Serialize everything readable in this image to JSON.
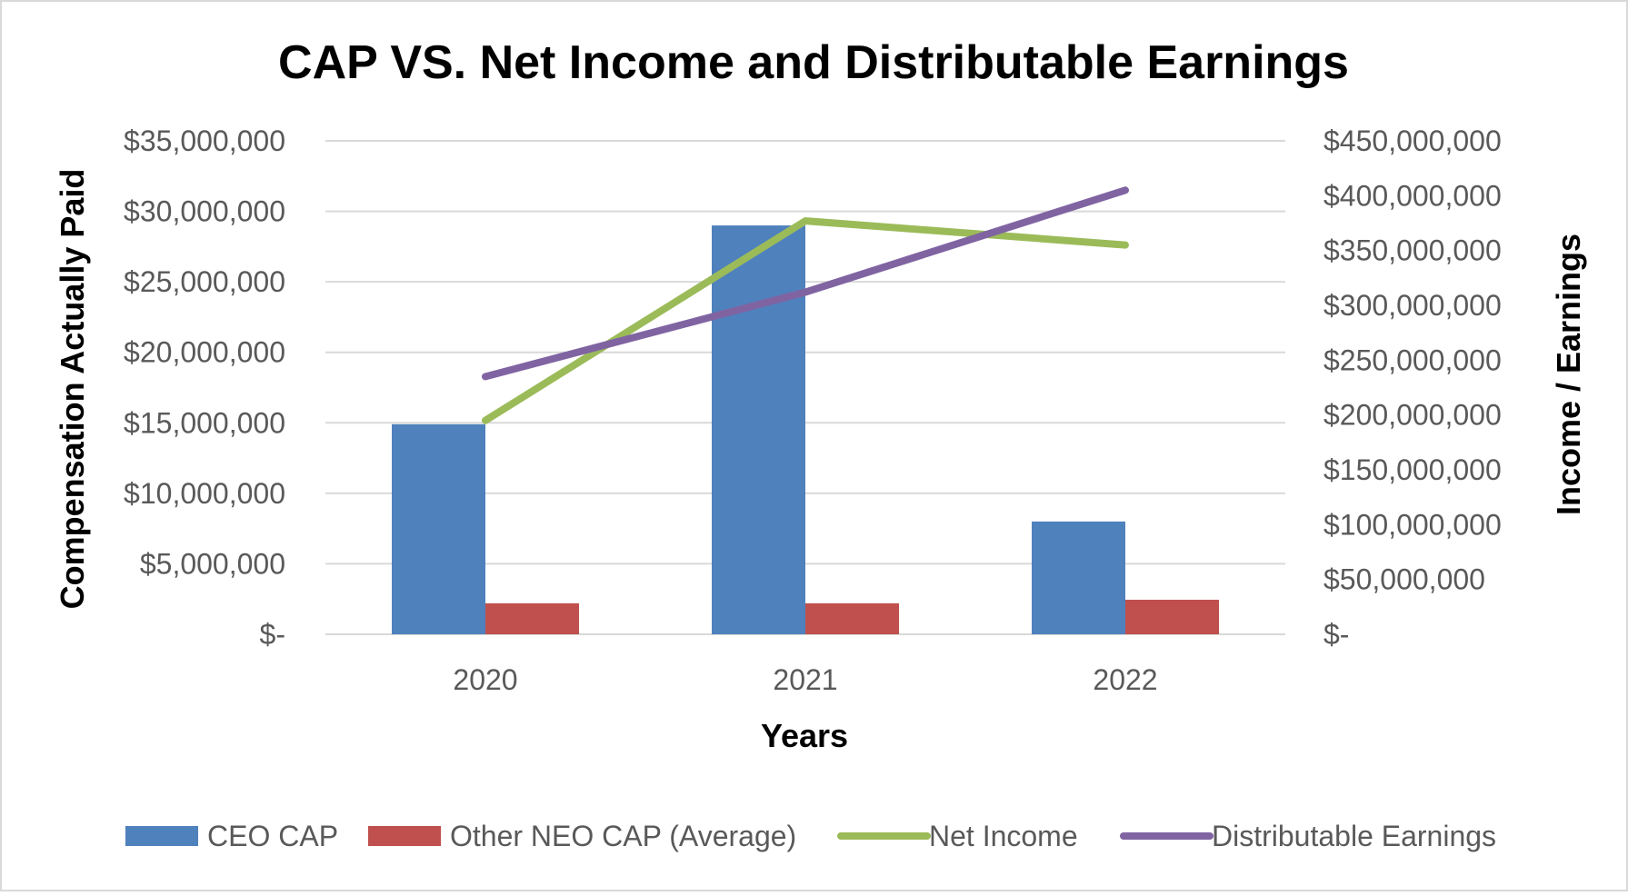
{
  "chart_data": {
    "type": "bar",
    "title": "CAP VS. Net Income and Distributable Earnings",
    "categories": [
      "2020",
      "2021",
      "2022"
    ],
    "xlabel": "Years",
    "ylabel": "Compensation Actually Paid",
    "y2label": "Income / Earnings",
    "ylim": [
      0,
      35000000
    ],
    "y2lim": [
      0,
      450000000
    ],
    "grid": true,
    "legend_position": "bottom",
    "y_ticks": [
      "$-",
      "$5,000,000",
      "$10,000,000",
      "$15,000,000",
      "$20,000,000",
      "$25,000,000",
      "$30,000,000",
      "$35,000,000"
    ],
    "y2_ticks": [
      "$-",
      "$50,000,000",
      "$100,000,000",
      "$150,000,000",
      "$200,000,000",
      "$250,000,000",
      "$300,000,000",
      "$350,000,000",
      "$400,000,000",
      "$450,000,000"
    ],
    "series": [
      {
        "name": "CEO CAP",
        "kind": "bar",
        "axis": "left",
        "color": "#4f81bd",
        "values": [
          14900000,
          29000000,
          8000000
        ]
      },
      {
        "name": "Other NEO CAP (Average)",
        "kind": "bar",
        "axis": "left",
        "color": "#c0504d",
        "values": [
          2200000,
          2200000,
          2450000
        ]
      },
      {
        "name": "Net Income",
        "kind": "line",
        "axis": "right",
        "color": "#9bbb59",
        "values": [
          195000000,
          377000000,
          355000000
        ]
      },
      {
        "name": "Distributable Earnings",
        "kind": "line",
        "axis": "right",
        "color": "#8064a2",
        "values": [
          235000000,
          312000000,
          405000000
        ]
      }
    ]
  }
}
